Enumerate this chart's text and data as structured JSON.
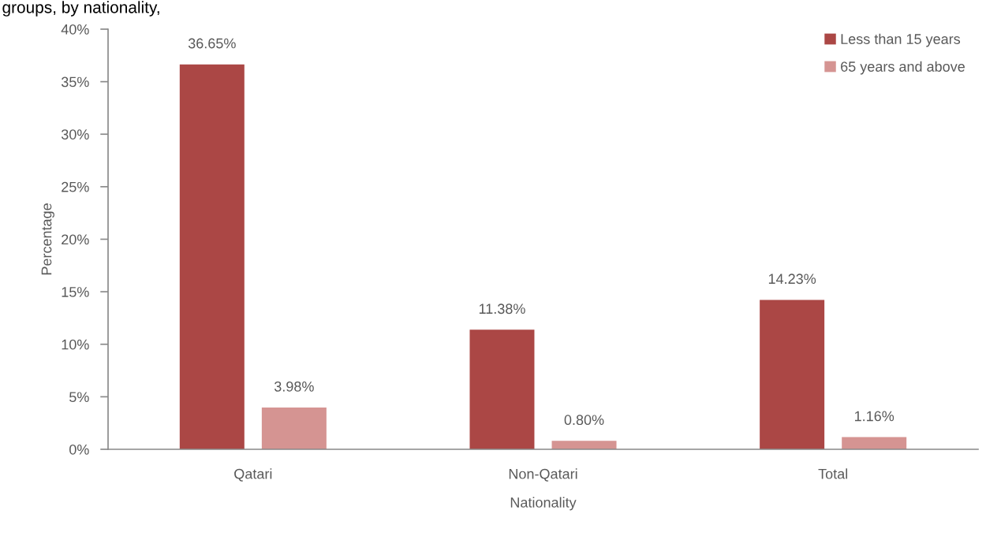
{
  "chart_data": {
    "type": "bar",
    "title": "groups, by nationality,",
    "xlabel": "Nationality",
    "ylabel": "Percentage",
    "categories": [
      "Qatari",
      "Non-Qatari",
      "Total"
    ],
    "series": [
      {
        "name": "Less than 15 years",
        "color": "#ab4745",
        "values": [
          36.65,
          11.38,
          14.23
        ],
        "value_labels": [
          "36.65%",
          "11.38%",
          "14.23%"
        ]
      },
      {
        "name": "65 years and above",
        "color": "#d59492",
        "values": [
          3.98,
          0.8,
          1.16
        ],
        "value_labels": [
          "3.98%",
          "0.80%",
          "1.16%"
        ]
      }
    ],
    "ylim": [
      0,
      40
    ],
    "yticks": [
      {
        "value": 0,
        "label": "0%"
      },
      {
        "value": 5,
        "label": "5%"
      },
      {
        "value": 10,
        "label": "10%"
      },
      {
        "value": 15,
        "label": "15%"
      },
      {
        "value": 20,
        "label": "20%"
      },
      {
        "value": 25,
        "label": "25%"
      },
      {
        "value": 30,
        "label": "30%"
      },
      {
        "value": 35,
        "label": "35%"
      },
      {
        "value": 40,
        "label": "40%"
      }
    ],
    "grid": false,
    "legend": "top right"
  }
}
